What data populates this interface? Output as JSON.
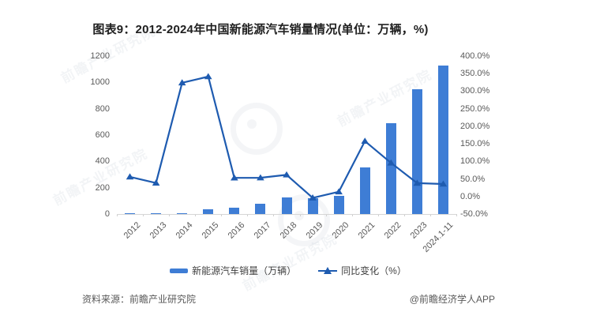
{
  "title": "图表9：2012-2024年中国新能源汽车销量情况(单位：万辆，%)",
  "chart_data": {
    "type": "bar",
    "subtype": "bar-and-line-combo",
    "categories": [
      "2012",
      "2013",
      "2014",
      "2015",
      "2016",
      "2017",
      "2018",
      "2019",
      "2020",
      "2021",
      "2022",
      "2023",
      "2024.1-11"
    ],
    "series": [
      {
        "name": "新能源汽车销量（万辆）",
        "type": "bar",
        "axis": "left",
        "values": [
          1.3,
          1.8,
          7.5,
          33.1,
          50.7,
          77.7,
          125.6,
          120.6,
          136.7,
          352.1,
          688.7,
          949.5,
          1126.2
        ]
      },
      {
        "name": "同比变化（%）",
        "type": "line",
        "axis": "right",
        "values": [
          56.0,
          38.5,
          324.0,
          341.5,
          53.0,
          53.3,
          61.7,
          -4.0,
          13.4,
          157.6,
          95.6,
          37.9,
          35.6
        ]
      }
    ],
    "left_axis": {
      "min": 0,
      "max": 1200,
      "step": 200,
      "ticks": [
        "1200",
        "1000",
        "800",
        "600",
        "400",
        "200",
        "0"
      ]
    },
    "right_axis": {
      "min": -50,
      "max": 400,
      "step": 50,
      "ticks": [
        "400.0%",
        "350.0%",
        "300.0%",
        "250.0%",
        "200.0%",
        "150.0%",
        "100.0%",
        "50.0%",
        "0.0%",
        "-50.0%"
      ]
    },
    "grid": false,
    "legend_position": "bottom",
    "colors": {
      "bar": "#3E7DD5",
      "line": "#1E5BB0"
    }
  },
  "legend": [
    "新能源汽车销量（万辆）",
    "同比变化（%）"
  ],
  "footer": {
    "source": "资料来源：前瞻产业研究院",
    "brand": "@前瞻经济学人APP"
  },
  "watermark": {
    "text": "前瞻产业研究院"
  }
}
